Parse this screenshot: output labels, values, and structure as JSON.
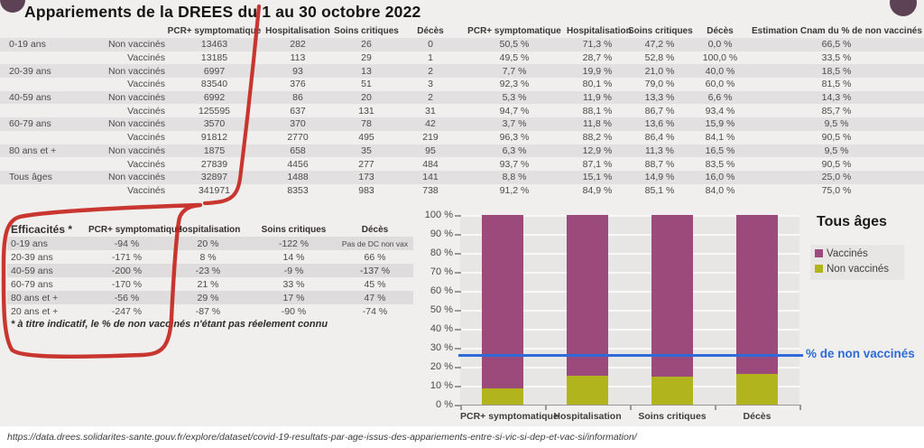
{
  "title": "Appariements de la DREES du 1 au 30 octobre 2022",
  "colors": {
    "accent_circle": "#5d4255",
    "red_annotation": "#c6261e",
    "vaccinated_bar": "#9c4a7c",
    "unvaccinated_bar": "#b2b41e",
    "reference_line_blue": "#2e6bd8",
    "row_stripe": "#e2e0e0"
  },
  "counts_table": {
    "count_columns": [
      "PCR+ symptomatique",
      "Hospitalisation",
      "Soins critiques",
      "Décès"
    ],
    "pct_columns": [
      "PCR+ symptomatique",
      "Hospitalisation",
      "Soins critiques",
      "Décès"
    ],
    "estimation_column": "Estimation Cnam du % de non vaccinés",
    "rows": [
      {
        "age": "0-19 ans",
        "status": "Non vaccinés",
        "counts": [
          "13463",
          "282",
          "26",
          "0"
        ],
        "pcts": [
          "50,5 %",
          "71,3 %",
          "47,2 %",
          "0,0 %"
        ],
        "estimation": "66,5 %"
      },
      {
        "age": "",
        "status": "Vaccinés",
        "counts": [
          "13185",
          "113",
          "29",
          "1"
        ],
        "pcts": [
          "49,5 %",
          "28,7 %",
          "52,8 %",
          "100,0 %"
        ],
        "estimation": "33,5 %"
      },
      {
        "age": "20-39 ans",
        "status": "Non vaccinés",
        "counts": [
          "6997",
          "93",
          "13",
          "2"
        ],
        "pcts": [
          "7,7 %",
          "19,9 %",
          "21,0 %",
          "40,0 %"
        ],
        "estimation": "18,5 %"
      },
      {
        "age": "",
        "status": "Vaccinés",
        "counts": [
          "83540",
          "376",
          "51",
          "3"
        ],
        "pcts": [
          "92,3 %",
          "80,1 %",
          "79,0 %",
          "60,0 %"
        ],
        "estimation": "81,5 %"
      },
      {
        "age": "40-59 ans",
        "status": "Non vaccinés",
        "counts": [
          "6992",
          "86",
          "20",
          "2"
        ],
        "pcts": [
          "5,3 %",
          "11,9 %",
          "13,3 %",
          "6,6 %"
        ],
        "estimation": "14,3 %"
      },
      {
        "age": "",
        "status": "Vaccinés",
        "counts": [
          "125595",
          "637",
          "131",
          "31"
        ],
        "pcts": [
          "94,7 %",
          "88,1 %",
          "86,7 %",
          "93,4 %"
        ],
        "estimation": "85,7 %"
      },
      {
        "age": "60-79 ans",
        "status": "Non vaccinés",
        "counts": [
          "3570",
          "370",
          "78",
          "42"
        ],
        "pcts": [
          "3,7 %",
          "11,8 %",
          "13,6 %",
          "15,9 %"
        ],
        "estimation": "9,5 %"
      },
      {
        "age": "",
        "status": "Vaccinés",
        "counts": [
          "91812",
          "2770",
          "495",
          "219"
        ],
        "pcts": [
          "96,3 %",
          "88,2 %",
          "86,4 %",
          "84,1 %"
        ],
        "estimation": "90,5 %"
      },
      {
        "age": "80 ans et +",
        "status": "Non vaccinés",
        "counts": [
          "1875",
          "658",
          "35",
          "95"
        ],
        "pcts": [
          "6,3 %",
          "12,9 %",
          "11,3 %",
          "16,5 %"
        ],
        "estimation": "9,5 %"
      },
      {
        "age": "",
        "status": "Vaccinés",
        "counts": [
          "27839",
          "4456",
          "277",
          "484"
        ],
        "pcts": [
          "93,7 %",
          "87,1 %",
          "88,7 %",
          "83,5 %"
        ],
        "estimation": "90,5 %"
      },
      {
        "age": "Tous âges",
        "status": "Non vaccinés",
        "counts": [
          "32897",
          "1488",
          "173",
          "141"
        ],
        "pcts": [
          "8,8 %",
          "15,1 %",
          "14,9 %",
          "16,0 %"
        ],
        "estimation": "25,0 %"
      },
      {
        "age": "",
        "status": "Vaccinés",
        "counts": [
          "341971",
          "8353",
          "983",
          "738"
        ],
        "pcts": [
          "91,2 %",
          "84,9 %",
          "85,1 %",
          "84,0 %"
        ],
        "estimation": "75,0 %"
      }
    ]
  },
  "efficacy_table": {
    "title": "Efficacités *",
    "columns": [
      "PCR+ symptomatique",
      "Hospitalisation",
      "Soins critiques",
      "Décès"
    ],
    "rows": [
      {
        "age": "0-19 ans",
        "values": [
          "-94 %",
          "20 %",
          "-122 %",
          "Pas de DC non vax"
        ]
      },
      {
        "age": "20-39 ans",
        "values": [
          "-171 %",
          "8 %",
          "14 %",
          "66 %"
        ]
      },
      {
        "age": "40-59 ans",
        "values": [
          "-200 %",
          "-23 %",
          "-9 %",
          "-137 %"
        ]
      },
      {
        "age": "60-79 ans",
        "values": [
          "-170 %",
          "21 %",
          "33 %",
          "45 %"
        ]
      },
      {
        "age": "80 ans et +",
        "values": [
          "-56 %",
          "29 %",
          "17 %",
          "47 %"
        ]
      },
      {
        "age": "20 ans et +",
        "values": [
          "-247 %",
          "-87 %",
          "-90 %",
          "-74 %"
        ]
      }
    ],
    "footnote": "* à titre indicatif, le % de non vaccinés n'étant pas réelement connu"
  },
  "chart_data": {
    "type": "bar",
    "stacked": true,
    "title": "Tous âges",
    "categories": [
      "PCR+ symptomatique",
      "Hospitalisation",
      "Soins critiques",
      "Décès"
    ],
    "series": [
      {
        "name": "Non vaccinés",
        "color": "#b2b41e",
        "values": [
          8.8,
          15.1,
          14.9,
          16.0
        ]
      },
      {
        "name": "Vaccinés",
        "color": "#9c4a7c",
        "values": [
          91.2,
          84.9,
          85.1,
          84.0
        ]
      }
    ],
    "reference_line": {
      "value": 25,
      "label": "% de non vaccinés",
      "color": "#2e6bd8"
    },
    "y_ticks": [
      "100 %",
      "90 %",
      "80 %",
      "70 %",
      "60 %",
      "50 %",
      "40 %",
      "30 %",
      "20 %",
      "10 %",
      "0 %"
    ],
    "ylim": [
      0,
      100
    ],
    "grid": true,
    "legend": [
      "Vaccinés",
      "Non vaccinés"
    ],
    "legend_position": "right"
  },
  "footer": {
    "url": "https://data.drees.solidarites-sante.gouv.fr/explore/dataset/covid-19-resultats-par-age-issus-des-appariements-entre-si-vic-si-dep-et-vac-si/information/"
  }
}
